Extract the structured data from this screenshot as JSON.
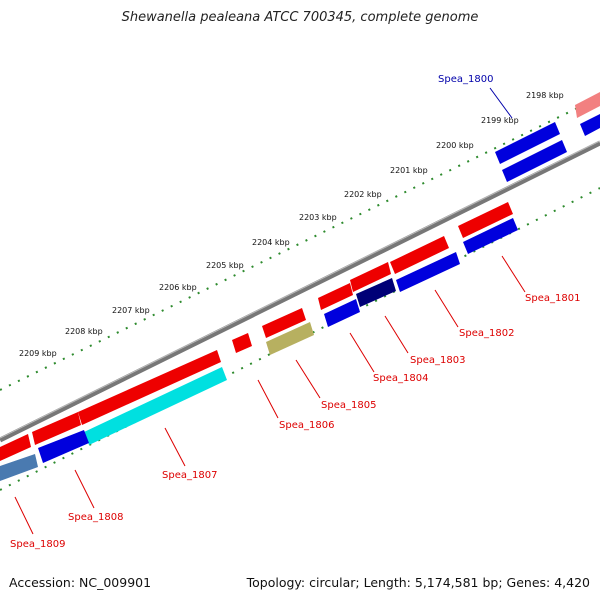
{
  "title": "Shewanella pealeana ATCC 700345, complete genome",
  "footer": {
    "accession": "Accession: NC_009901",
    "info": "Topology: circular; Length: 5,174,581 bp; Genes: 4,420"
  },
  "colors": {
    "forward_strand": "#ee0000",
    "reverse_strand": "#0000dd",
    "highlight_cyan": "#00e0e0",
    "highlight_olive": "#b7b060",
    "highlight_navy": "#000077",
    "highlight_steel": "#4a7ab0",
    "highlight_pink": "#f28080",
    "backbone": "#777777",
    "ticks": "#2e8b2e",
    "label_forward": "#dd0000",
    "label_reverse": "#0000aa"
  },
  "kbp_labels": [
    "2198 kbp",
    "2199 kbp",
    "2200 kbp",
    "2201 kbp",
    "2202 kbp",
    "2203 kbp",
    "2204 kbp",
    "2205 kbp",
    "2206 kbp",
    "2207 kbp",
    "2208 kbp",
    "2209 kbp"
  ],
  "gene_labels": [
    {
      "text": "Spea_1800",
      "strand": "reverse"
    },
    {
      "text": "Spea_1801",
      "strand": "forward"
    },
    {
      "text": "Spea_1802",
      "strand": "forward"
    },
    {
      "text": "Spea_1803",
      "strand": "forward"
    },
    {
      "text": "Spea_1804",
      "strand": "forward"
    },
    {
      "text": "Spea_1805",
      "strand": "forward"
    },
    {
      "text": "Spea_1806",
      "strand": "forward"
    },
    {
      "text": "Spea_1807",
      "strand": "forward"
    },
    {
      "text": "Spea_1808",
      "strand": "forward"
    },
    {
      "text": "Spea_1809",
      "strand": "forward"
    }
  ]
}
